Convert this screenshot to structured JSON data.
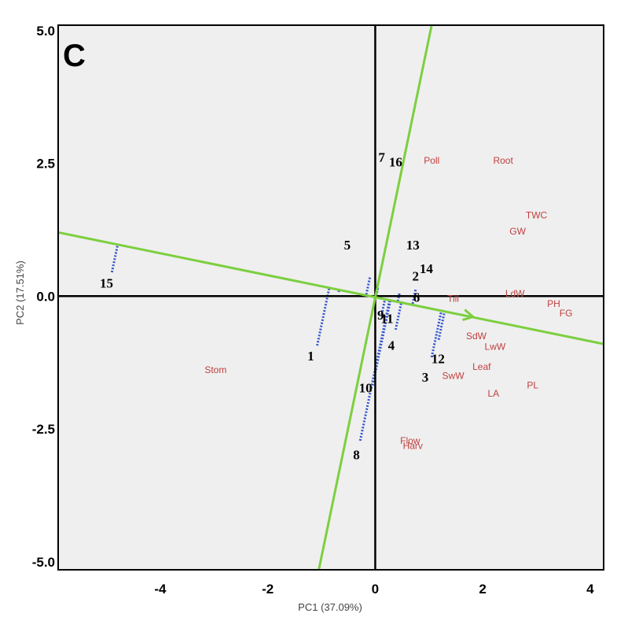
{
  "chart_data": {
    "type": "scatter",
    "panel_label": "C",
    "xlabel": "PC1 (37.09%)",
    "ylabel": "PC2 (17.51%)",
    "xlim": [
      -5.9,
      4.25
    ],
    "ylim": [
      -5.15,
      5.1
    ],
    "x_ticks": [
      {
        "value": -4,
        "label": "-4"
      },
      {
        "value": -2,
        "label": "-2"
      },
      {
        "value": 0,
        "label": "0"
      },
      {
        "value": 2,
        "label": "2"
      },
      {
        "value": 4,
        "label": "4"
      }
    ],
    "y_ticks": [
      {
        "value": 5,
        "label": "5.0"
      },
      {
        "value": 2.5,
        "label": "2.5"
      },
      {
        "value": 0,
        "label": "0.0"
      },
      {
        "value": -2.5,
        "label": "-2.5"
      },
      {
        "value": -5,
        "label": "-5.0"
      }
    ],
    "colors": {
      "background": "#efefef",
      "trait_text": "#c0403f",
      "projection": "#3355cc",
      "axis_line": "#7ccf3f"
    },
    "traits": [
      {
        "name": "Poll",
        "x": 1.05,
        "y": 2.55
      },
      {
        "name": "Root",
        "x": 2.38,
        "y": 2.55
      },
      {
        "name": "TWC",
        "x": 3.0,
        "y": 1.52
      },
      {
        "name": "GW",
        "x": 2.65,
        "y": 1.22
      },
      {
        "name": "LdW",
        "x": 2.6,
        "y": 0.05
      },
      {
        "name": "PH",
        "x": 3.32,
        "y": -0.14
      },
      {
        "name": "FG",
        "x": 3.55,
        "y": -0.32
      },
      {
        "name": "Till",
        "x": 1.45,
        "y": -0.05
      },
      {
        "name": "SdW",
        "x": 1.88,
        "y": -0.75
      },
      {
        "name": "LwW",
        "x": 2.23,
        "y": -0.95
      },
      {
        "name": "Leaf",
        "x": 1.98,
        "y": -1.33
      },
      {
        "name": "SwW",
        "x": 1.45,
        "y": -1.5
      },
      {
        "name": "PL",
        "x": 2.93,
        "y": -1.68
      },
      {
        "name": "LA",
        "x": 2.2,
        "y": -1.83
      },
      {
        "name": "Stom",
        "x": -2.97,
        "y": -1.39
      },
      {
        "name": "Flow",
        "x": 0.65,
        "y": -2.72
      },
      {
        "name": "Harv",
        "x": 0.7,
        "y": -2.82
      }
    ],
    "genotypes": [
      {
        "id": "1",
        "x": -1.08,
        "y": -0.93,
        "label_x": -1.2,
        "label_y": -1.12
      },
      {
        "id": "2",
        "x": 0.68,
        "y": -0.18,
        "label_x": 0.75,
        "label_y": 0.38
      },
      {
        "id": "3",
        "x": 1.05,
        "y": -1.15,
        "label_x": 0.93,
        "label_y": -1.52
      },
      {
        "id": "4",
        "x": 0.38,
        "y": -0.63,
        "label_x": 0.3,
        "label_y": -0.92
      },
      {
        "id": "5",
        "x": -0.68,
        "y": 0.08,
        "label_x": -0.52,
        "label_y": 0.97
      },
      {
        "id": "6",
        "x": 0.5,
        "y": -0.1,
        "label_x": 0.77,
        "label_y": -0.02
      },
      {
        "id": "7",
        "x": -0.1,
        "y": 0.35,
        "label_x": 0.12,
        "label_y": 2.62
      },
      {
        "id": "8",
        "x": -0.28,
        "y": -2.72,
        "label_x": -0.35,
        "label_y": -2.98
      },
      {
        "id": "9",
        "x": 0.12,
        "y": -0.35,
        "label_x": 0.1,
        "label_y": -0.35
      },
      {
        "id": "10",
        "x": -0.05,
        "y": -1.68,
        "label_x": -0.18,
        "label_y": -1.72
      },
      {
        "id": "11",
        "x": 0.18,
        "y": -0.52,
        "label_x": 0.22,
        "label_y": -0.42
      },
      {
        "id": "12",
        "x": 1.18,
        "y": -0.82,
        "label_x": 1.17,
        "label_y": -1.17
      },
      {
        "id": "13",
        "x": 0.45,
        "y": 0.05,
        "label_x": 0.7,
        "label_y": 0.97
      },
      {
        "id": "14",
        "x": 0.75,
        "y": 0.12,
        "label_x": 0.95,
        "label_y": 0.52
      },
      {
        "id": "15",
        "x": -4.9,
        "y": 0.45,
        "label_x": -5.0,
        "label_y": 0.25
      },
      {
        "id": "16",
        "x": 0.05,
        "y": 0.15,
        "label_x": 0.38,
        "label_y": 2.53
      }
    ],
    "axis_lines": {
      "pc_line": {
        "x1": -5.9,
        "y1": 1.2,
        "x2": 4.25,
        "y2": -0.9
      },
      "perpendicular_line": {
        "x1": -1.05,
        "y1": -5.15,
        "x2": 1.05,
        "y2": 5.1
      }
    },
    "arrow": {
      "x1": 1.5,
      "y1": -0.32,
      "x2": 1.82,
      "y2": -0.39
    }
  }
}
